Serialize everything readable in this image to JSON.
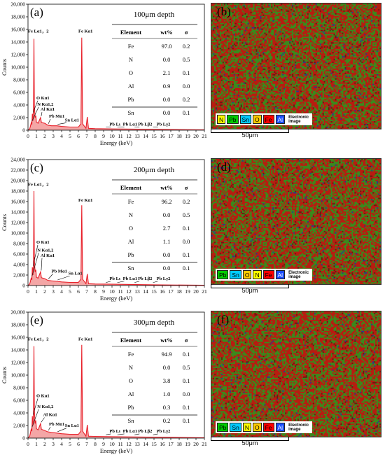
{
  "chart_data": [
    {
      "type": "line",
      "panel": "(a)",
      "map_panel": "(b)",
      "xlabel": "Energy (keV)",
      "ylabel": "Counts",
      "xlim": [
        0,
        21
      ],
      "ylim": [
        0,
        20000
      ],
      "x_ticks": [
        "0",
        "1",
        "2",
        "3",
        "4",
        "5",
        "6",
        "7",
        "8",
        "9",
        "10",
        "11",
        "12",
        "13",
        "14",
        "15",
        "16",
        "17",
        "18",
        "19",
        "20",
        "21"
      ],
      "y_ticks": [
        "0",
        "2,000",
        "4,000",
        "6,000",
        "8,000",
        "10,000",
        "12,000",
        "14,000",
        "16,000",
        "18,000",
        "20,000"
      ],
      "depth_label": "100μm depth",
      "table": {
        "headers": [
          "Element",
          "wt%",
          "σ"
        ],
        "rows": [
          [
            "Fe",
            "97.0",
            "0.2"
          ],
          [
            "N",
            "0.0",
            "0.5"
          ],
          [
            "O",
            "2.1",
            "0.1"
          ],
          [
            "Al",
            "0.9",
            "0.0"
          ],
          [
            "Pb",
            "0.0",
            "0.2"
          ],
          [
            "Sn",
            "0.0",
            "0.1"
          ]
        ]
      },
      "peaks": [
        {
          "label": "Fe Lα1，2",
          "x": 0.71,
          "y": 14500,
          "lx": 0.0,
          "ly": 15500
        },
        {
          "label": "O Kα1",
          "x": 0.52,
          "y": 2600,
          "lx": 1.0,
          "ly": 4900
        },
        {
          "label": "N Kα1,2",
          "x": 0.39,
          "y": 1200,
          "lx": 1.1,
          "ly": 3900
        },
        {
          "label": "Al Kα1",
          "x": 1.49,
          "y": 2000,
          "lx": 1.5,
          "ly": 3100
        },
        {
          "label": "Pb Mα1",
          "x": 2.35,
          "y": 800,
          "lx": 2.5,
          "ly": 2000
        },
        {
          "label": "Sn Lα1",
          "x": 3.44,
          "y": 700,
          "lx": 4.4,
          "ly": 1400
        },
        {
          "label": "Fe Kα1",
          "x": 6.4,
          "y": 14700,
          "lx": 6.0,
          "ly": 15500
        },
        {
          "label": "Pb Lι",
          "x": 9.18,
          "y": 250,
          "lx": 9.7,
          "ly": 700
        },
        {
          "label": "Pb Lα1",
          "x": 10.55,
          "y": 250,
          "lx": 11.3,
          "ly": 700
        },
        {
          "label": "Pb Lβ2",
          "x": 12.6,
          "y": 250,
          "lx": 13.1,
          "ly": 700
        },
        {
          "label": "Pb Lγ2",
          "x": 14.8,
          "y": 250,
          "lx": 15.3,
          "ly": 700
        }
      ],
      "spectrum": [
        [
          0,
          0
        ],
        [
          0.2,
          200
        ],
        [
          0.3,
          700
        ],
        [
          0.39,
          1200
        ],
        [
          0.46,
          900
        ],
        [
          0.52,
          2600
        ],
        [
          0.6,
          1500
        ],
        [
          0.66,
          4200
        ],
        [
          0.71,
          14500
        ],
        [
          0.76,
          4000
        ],
        [
          0.84,
          2000
        ],
        [
          0.93,
          2300
        ],
        [
          1.0,
          1300
        ],
        [
          1.2,
          1100
        ],
        [
          1.49,
          2000
        ],
        [
          1.6,
          1200
        ],
        [
          2.0,
          1100
        ],
        [
          2.35,
          800
        ],
        [
          2.8,
          700
        ],
        [
          3.44,
          700
        ],
        [
          4.0,
          600
        ],
        [
          5.0,
          500
        ],
        [
          6.0,
          500
        ],
        [
          6.3,
          1000
        ],
        [
          6.4,
          14700
        ],
        [
          6.5,
          1000
        ],
        [
          6.9,
          300
        ],
        [
          7.06,
          2100
        ],
        [
          7.2,
          300
        ],
        [
          8.0,
          250
        ],
        [
          10.0,
          200
        ],
        [
          15.0,
          130
        ],
        [
          21.0,
          50
        ]
      ],
      "map_legend": [
        {
          "label": "N",
          "color": "#ffff00"
        },
        {
          "label": "Pb",
          "color": "#00cc00"
        },
        {
          "label": "Sn",
          "color": "#00ccff"
        },
        {
          "label": "O",
          "color": "#ffcc00"
        },
        {
          "label": "Fe",
          "color": "#ff0000"
        },
        {
          "label": "Al",
          "color": "#1a4dff"
        }
      ],
      "electronic_label": "Electronic image",
      "scale_label": "50μm"
    },
    {
      "type": "line",
      "panel": "(c)",
      "map_panel": "(d)",
      "xlabel": "Energy (keV)",
      "ylabel": "Counts",
      "xlim": [
        0,
        21
      ],
      "ylim": [
        0,
        24000
      ],
      "x_ticks": [
        "0",
        "1",
        "2",
        "3",
        "4",
        "5",
        "6",
        "7",
        "8",
        "9",
        "10",
        "11",
        "12",
        "13",
        "14",
        "15",
        "16",
        "17",
        "18",
        "19",
        "20",
        "21"
      ],
      "y_ticks": [
        "0",
        "2,000",
        "4,000",
        "6,000",
        "8,000",
        "10,000",
        "12,000",
        "14,000",
        "16,000",
        "18,000",
        "20,000",
        "22,000",
        "24,000"
      ],
      "depth_label": "200μm depth",
      "table": {
        "headers": [
          "Element",
          "wt%",
          "σ"
        ],
        "rows": [
          [
            "Fe",
            "96.2",
            "0.2"
          ],
          [
            "N",
            "0.0",
            "0.5"
          ],
          [
            "O",
            "2.7",
            "0.1"
          ],
          [
            "Al",
            "1.1",
            "0.0"
          ],
          [
            "Pb",
            "0.0",
            "0.1"
          ],
          [
            "Sn",
            "0.0",
            "0.1"
          ]
        ]
      },
      "peaks": [
        {
          "label": "Fe Lα1，2",
          "x": 0.71,
          "y": 18000,
          "lx": 0.0,
          "ly": 19000
        },
        {
          "label": "O Kα1",
          "x": 0.52,
          "y": 3500,
          "lx": 1.0,
          "ly": 8000
        },
        {
          "label": "N Kα1,2",
          "x": 0.39,
          "y": 1500,
          "lx": 1.1,
          "ly": 6500
        },
        {
          "label": "Al Kα1",
          "x": 1.49,
          "y": 2600,
          "lx": 1.5,
          "ly": 5500
        },
        {
          "label": "Pb Mα1",
          "x": 2.35,
          "y": 1000,
          "lx": 2.8,
          "ly": 2500
        },
        {
          "label": "Sn Lα1",
          "x": 3.44,
          "y": 800,
          "lx": 4.8,
          "ly": 2100
        },
        {
          "label": "Fe Kα1",
          "x": 6.4,
          "y": 15300,
          "lx": 6.0,
          "ly": 16000
        },
        {
          "label": "Pb Lι",
          "x": 9.18,
          "y": 300,
          "lx": 9.7,
          "ly": 1100
        },
        {
          "label": "Pb Lα1",
          "x": 10.55,
          "y": 300,
          "lx": 11.3,
          "ly": 1100
        },
        {
          "label": "Pb Lβ2",
          "x": 12.6,
          "y": 300,
          "lx": 13.1,
          "ly": 1100
        },
        {
          "label": "Pb Lγ2",
          "x": 14.8,
          "y": 300,
          "lx": 15.3,
          "ly": 1100
        }
      ],
      "spectrum": [
        [
          0,
          0
        ],
        [
          0.2,
          300
        ],
        [
          0.3,
          900
        ],
        [
          0.39,
          1500
        ],
        [
          0.46,
          1100
        ],
        [
          0.52,
          3500
        ],
        [
          0.6,
          2000
        ],
        [
          0.66,
          5000
        ],
        [
          0.71,
          18000
        ],
        [
          0.76,
          5000
        ],
        [
          0.84,
          2600
        ],
        [
          0.93,
          3000
        ],
        [
          1.0,
          1600
        ],
        [
          1.2,
          1400
        ],
        [
          1.49,
          2600
        ],
        [
          1.6,
          1500
        ],
        [
          2.0,
          1300
        ],
        [
          2.35,
          1000
        ],
        [
          2.8,
          900
        ],
        [
          3.44,
          800
        ],
        [
          4.0,
          700
        ],
        [
          5.0,
          600
        ],
        [
          6.0,
          600
        ],
        [
          6.3,
          1200
        ],
        [
          6.4,
          15300
        ],
        [
          6.5,
          1200
        ],
        [
          6.9,
          350
        ],
        [
          7.06,
          2200
        ],
        [
          7.2,
          350
        ],
        [
          8.0,
          300
        ],
        [
          10.0,
          250
        ],
        [
          15.0,
          150
        ],
        [
          21.0,
          60
        ]
      ],
      "map_legend": [
        {
          "label": "Pb",
          "color": "#00cc00"
        },
        {
          "label": "Sn",
          "color": "#00ccff"
        },
        {
          "label": "O",
          "color": "#ffcc00"
        },
        {
          "label": "N",
          "color": "#ffff00"
        },
        {
          "label": "Fe",
          "color": "#ff0000"
        },
        {
          "label": "Al",
          "color": "#1a4dff"
        }
      ],
      "electronic_label": "Electronic image",
      "scale_label": "50μm"
    },
    {
      "type": "line",
      "panel": "(e)",
      "map_panel": "(f)",
      "xlabel": "Energy (keV)",
      "ylabel": "Counts",
      "xlim": [
        0,
        21
      ],
      "ylim": [
        0,
        20000
      ],
      "x_ticks": [
        "0",
        "1",
        "2",
        "3",
        "4",
        "5",
        "6",
        "7",
        "8",
        "9",
        "10",
        "11",
        "12",
        "13",
        "14",
        "15",
        "16",
        "17",
        "18",
        "19",
        "20",
        "21"
      ],
      "y_ticks": [
        "0",
        "2,000",
        "4,000",
        "6,000",
        "8,000",
        "10,000",
        "12,000",
        "14,000",
        "16,000",
        "18,000",
        "20,000"
      ],
      "depth_label": "300μm depth",
      "table": {
        "headers": [
          "Element",
          "wt%",
          "σ"
        ],
        "rows": [
          [
            "Fe",
            "94.9",
            "0.1"
          ],
          [
            "N",
            "0.0",
            "0.5"
          ],
          [
            "O",
            "3.8",
            "0.1"
          ],
          [
            "Al",
            "1.0",
            "0.0"
          ],
          [
            "Pb",
            "0.3",
            "0.1"
          ],
          [
            "Sn",
            "0.2",
            "0.1"
          ]
        ]
      },
      "peaks": [
        {
          "label": "Fe Lα1，2",
          "x": 0.71,
          "y": 14600,
          "lx": 0.0,
          "ly": 15500
        },
        {
          "label": "O Kα1",
          "x": 0.52,
          "y": 3500,
          "lx": 1.0,
          "ly": 6500
        },
        {
          "label": "N Kα1,2",
          "x": 0.39,
          "y": 1500,
          "lx": 1.1,
          "ly": 4800
        },
        {
          "label": "Al Kα1",
          "x": 1.49,
          "y": 2300,
          "lx": 1.8,
          "ly": 3500
        },
        {
          "label": "Pb Mα1",
          "x": 2.35,
          "y": 1000,
          "lx": 2.5,
          "ly": 2000
        },
        {
          "label": "Sn Lα1",
          "x": 3.44,
          "y": 800,
          "lx": 4.4,
          "ly": 1800
        },
        {
          "label": "Fe Kα1",
          "x": 6.4,
          "y": 14800,
          "lx": 6.0,
          "ly": 15500
        },
        {
          "label": "Pb Lι",
          "x": 9.18,
          "y": 300,
          "lx": 9.7,
          "ly": 900
        },
        {
          "label": "Pb Lα1",
          "x": 10.55,
          "y": 300,
          "lx": 11.3,
          "ly": 900
        },
        {
          "label": "Pb Lβ2",
          "x": 12.6,
          "y": 300,
          "lx": 13.1,
          "ly": 900
        },
        {
          "label": "Pb Lγ2",
          "x": 14.8,
          "y": 300,
          "lx": 15.3,
          "ly": 900
        }
      ],
      "spectrum": [
        [
          0,
          0
        ],
        [
          0.2,
          300
        ],
        [
          0.3,
          900
        ],
        [
          0.39,
          1500
        ],
        [
          0.46,
          1100
        ],
        [
          0.52,
          3500
        ],
        [
          0.6,
          2000
        ],
        [
          0.66,
          4600
        ],
        [
          0.71,
          14600
        ],
        [
          0.76,
          4600
        ],
        [
          0.84,
          2300
        ],
        [
          0.93,
          2800
        ],
        [
          1.0,
          1500
        ],
        [
          1.2,
          1300
        ],
        [
          1.49,
          2300
        ],
        [
          1.6,
          1400
        ],
        [
          2.0,
          1200
        ],
        [
          2.35,
          1000
        ],
        [
          2.8,
          900
        ],
        [
          3.44,
          800
        ],
        [
          4.0,
          700
        ],
        [
          5.0,
          600
        ],
        [
          6.0,
          600
        ],
        [
          6.3,
          1100
        ],
        [
          6.4,
          14800
        ],
        [
          6.5,
          1100
        ],
        [
          6.9,
          300
        ],
        [
          7.06,
          2100
        ],
        [
          7.2,
          300
        ],
        [
          8.0,
          280
        ],
        [
          10.0,
          230
        ],
        [
          15.0,
          140
        ],
        [
          21.0,
          60
        ]
      ],
      "map_legend": [
        {
          "label": "Pb",
          "color": "#00cc00"
        },
        {
          "label": "Sn",
          "color": "#00ccff"
        },
        {
          "label": "N",
          "color": "#ffff00"
        },
        {
          "label": "O",
          "color": "#ffcc00"
        },
        {
          "label": "Fe",
          "color": "#ff0000"
        },
        {
          "label": "Al",
          "color": "#1a4dff"
        }
      ],
      "electronic_label": "Electronic image",
      "scale_label": "50μm"
    }
  ],
  "colors": {
    "spectrum_line": "#e8202a",
    "spectrum_fill": "#f4a6a6",
    "map_red": "#b81c10",
    "map_green": "#3a8a1c"
  }
}
